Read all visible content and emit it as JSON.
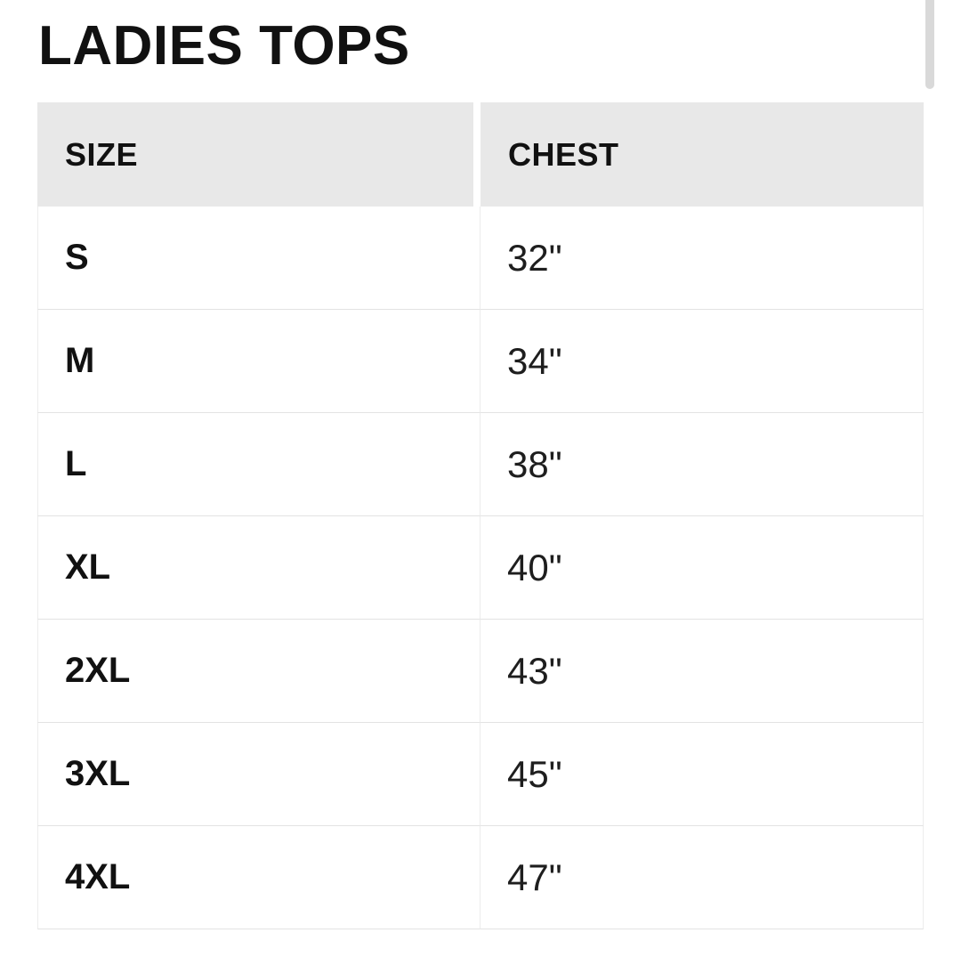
{
  "page": {
    "title": "LADIES TOPS"
  },
  "table": {
    "columns": [
      "SIZE",
      "CHEST"
    ],
    "rows": [
      {
        "size": "S",
        "chest": "32\""
      },
      {
        "size": "M",
        "chest": "34\""
      },
      {
        "size": "L",
        "chest": "38\""
      },
      {
        "size": "XL",
        "chest": "40\""
      },
      {
        "size": "2XL",
        "chest": "43\""
      },
      {
        "size": "3XL",
        "chest": "45\""
      },
      {
        "size": "4XL",
        "chest": "47\""
      }
    ]
  },
  "colors": {
    "header_bg": "#e8e8e8",
    "row_border": "#e3e3e3",
    "column_border": "#ececec",
    "title_text": "#111111",
    "value_text": "#1e1e1e",
    "scrollbar_thumb": "#d9d9d9",
    "page_bg": "#ffffff"
  }
}
